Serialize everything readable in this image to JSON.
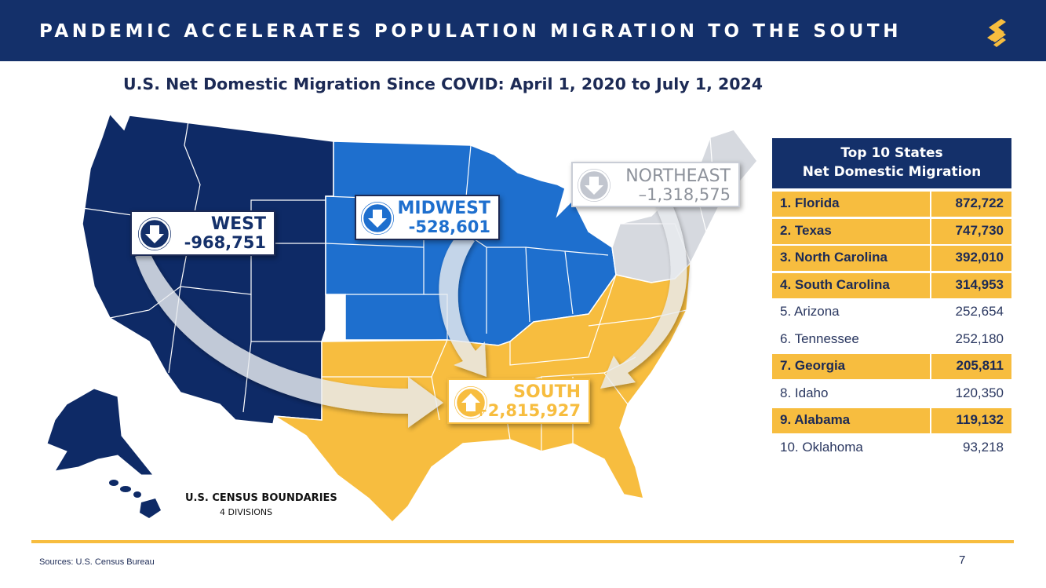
{
  "header": {
    "title": "PANDEMIC ACCELERATES POPULATION MIGRATION TO THE SOUTH",
    "logo_icon": "brand-s-logo-icon"
  },
  "subtitle": "U.S. Net Domestic Migration Since COVID: April 1, 2020 to July 1, 2024",
  "colors": {
    "navy": "#14306a",
    "west": "#0e2a66",
    "midwest": "#1e6fce",
    "northeast": "#d6d9df",
    "south": "#f7bd3f",
    "gold": "#f7bd3f"
  },
  "regions": {
    "west": {
      "name": "WEST",
      "value": "-968,751",
      "direction": "down"
    },
    "midwest": {
      "name": "MIDWEST",
      "value": "-528,601",
      "direction": "down"
    },
    "northeast": {
      "name": "NORTHEAST",
      "value": "–1,318,575",
      "direction": "down"
    },
    "south": {
      "name": "SOUTH",
      "value": "+2,815,927",
      "direction": "up"
    }
  },
  "legend": {
    "title": "U.S. CENSUS BOUNDARIES",
    "subtitle": "4 DIVISIONS"
  },
  "table": {
    "heading_line1": "Top 10 States",
    "heading_line2": "Net Domestic Migration",
    "rows": [
      {
        "state": "1. Florida",
        "value": "872,722",
        "highlight": true
      },
      {
        "state": "2. Texas",
        "value": "747,730",
        "highlight": true
      },
      {
        "state": "3. North Carolina",
        "value": "392,010",
        "highlight": true
      },
      {
        "state": "4. South Carolina",
        "value": "314,953",
        "highlight": true
      },
      {
        "state": "5. Arizona",
        "value": "252,654",
        "highlight": false
      },
      {
        "state": "6. Tennessee",
        "value": "252,180",
        "highlight": false
      },
      {
        "state": "7. Georgia",
        "value": "205,811",
        "highlight": true
      },
      {
        "state": "8. Idaho",
        "value": "120,350",
        "highlight": false
      },
      {
        "state": "9. Alabama",
        "value": "119,132",
        "highlight": true
      },
      {
        "state": "10. Oklahoma",
        "value": "93,218",
        "highlight": false
      }
    ]
  },
  "footer": {
    "source": "Sources: U.S. Census Bureau",
    "page_number": "7"
  }
}
